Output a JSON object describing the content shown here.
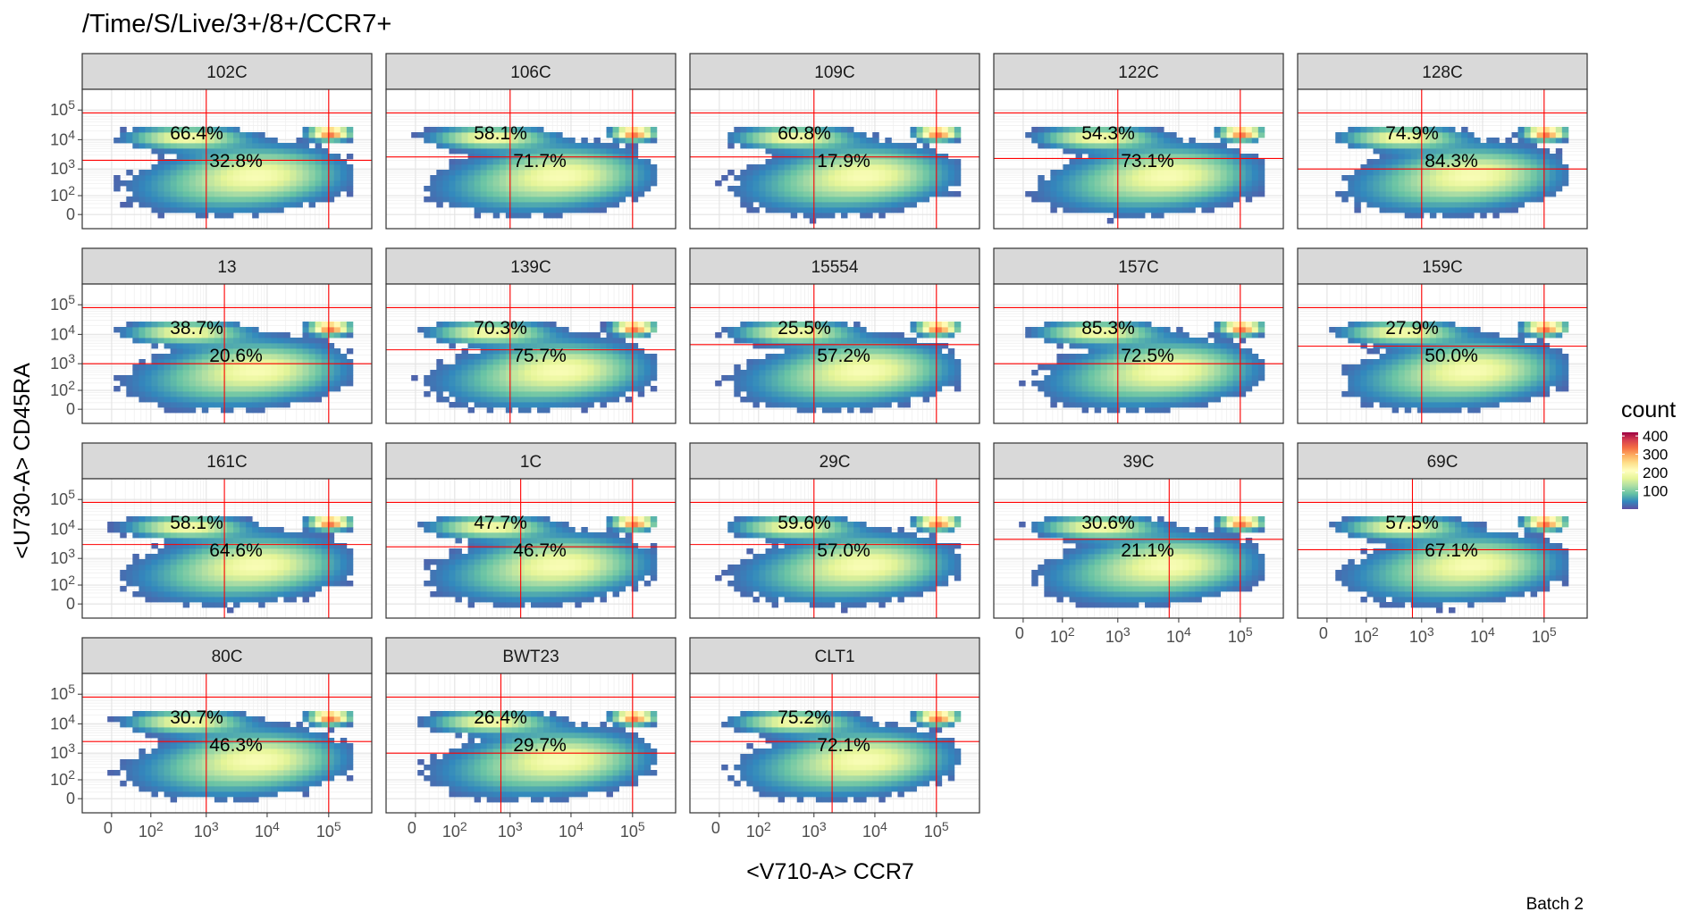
{
  "chart_data": {
    "type": "heatmap",
    "title": "/Time/S/Live/3+/8+/CCR7+",
    "xlabel": "<V710-A> CCR7",
    "ylabel": "<U730-A> CD45RA",
    "x_ticks": [
      "0",
      "10^2",
      "10^3",
      "10^4",
      "10^5"
    ],
    "y_ticks": [
      "0",
      "10^2",
      "10^3",
      "10^4",
      "10^5"
    ],
    "legend": {
      "title": "count",
      "ticks": [
        "100",
        "200",
        "300",
        "400"
      ],
      "values": [
        100,
        200,
        300,
        400
      ],
      "range": [
        0,
        420
      ],
      "colors": [
        "#5e4fa2",
        "#3288bd",
        "#66c2a5",
        "#abdda4",
        "#e6f598",
        "#ffffbf",
        "#fee08b",
        "#fdae61",
        "#f46d43",
        "#d53e4f",
        "#9e0142"
      ]
    },
    "gate_color": "#ff0000",
    "caption": "Batch 2",
    "panels": [
      {
        "name": "102C",
        "upper_pct": "66.4%",
        "lower_pct": "32.8%",
        "x_gate": 1000,
        "y_gate": 2000
      },
      {
        "name": "106C",
        "upper_pct": "58.1%",
        "lower_pct": "71.7%",
        "x_gate": 1000,
        "y_gate": 2600
      },
      {
        "name": "109C",
        "upper_pct": "60.8%",
        "lower_pct": "17.9%",
        "x_gate": 1000,
        "y_gate": 2600
      },
      {
        "name": "122C",
        "upper_pct": "54.3%",
        "lower_pct": "73.1%",
        "x_gate": 1000,
        "y_gate": 2300
      },
      {
        "name": "128C",
        "upper_pct": "74.9%",
        "lower_pct": "84.3%",
        "x_gate": 1000,
        "y_gate": 1000
      },
      {
        "name": "13",
        "upper_pct": "38.7%",
        "lower_pct": "20.6%",
        "x_gate": 2000,
        "y_gate": 1000
      },
      {
        "name": "139C",
        "upper_pct": "70.3%",
        "lower_pct": "75.7%",
        "x_gate": 1000,
        "y_gate": 3000
      },
      {
        "name": "15554",
        "upper_pct": "25.5%",
        "lower_pct": "57.2%",
        "x_gate": 1000,
        "y_gate": 4500
      },
      {
        "name": "157C",
        "upper_pct": "85.3%",
        "lower_pct": "72.5%",
        "x_gate": 1000,
        "y_gate": 1000
      },
      {
        "name": "159C",
        "upper_pct": "27.9%",
        "lower_pct": "50.0%",
        "x_gate": 1000,
        "y_gate": 4000
      },
      {
        "name": "161C",
        "upper_pct": "58.1%",
        "lower_pct": "64.6%",
        "x_gate": 2000,
        "y_gate": 3000
      },
      {
        "name": "1C",
        "upper_pct": "47.7%",
        "lower_pct": "46.7%",
        "x_gate": 1500,
        "y_gate": 2500
      },
      {
        "name": "29C",
        "upper_pct": "59.6%",
        "lower_pct": "57.0%",
        "x_gate": 1000,
        "y_gate": 3000
      },
      {
        "name": "39C",
        "upper_pct": "30.6%",
        "lower_pct": "21.1%",
        "x_gate": 7000,
        "y_gate": 4500
      },
      {
        "name": "69C",
        "upper_pct": "57.5%",
        "lower_pct": "67.1%",
        "x_gate": 700,
        "y_gate": 2000
      },
      {
        "name": "80C",
        "upper_pct": "30.7%",
        "lower_pct": "46.3%",
        "x_gate": 1000,
        "y_gate": 2500
      },
      {
        "name": "BWT23",
        "upper_pct": "26.4%",
        "lower_pct": "29.7%",
        "x_gate": 700,
        "y_gate": 1000
      },
      {
        "name": "CLT1",
        "upper_pct": "75.2%",
        "lower_pct": "72.1%",
        "x_gate": 2000,
        "y_gate": 2500
      }
    ]
  }
}
